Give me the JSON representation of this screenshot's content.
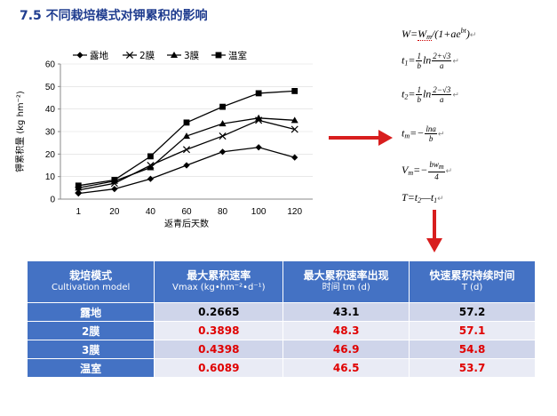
{
  "slide": {
    "title": "7.5  不同栽培模式对钾累积的影响"
  },
  "chart_data": {
    "type": "line",
    "x": [
      1,
      20,
      40,
      60,
      80,
      100,
      120
    ],
    "series": [
      {
        "name": "露地",
        "marker": "diamond",
        "values": [
          2.5,
          4.5,
          9,
          15,
          21,
          23,
          18.5
        ]
      },
      {
        "name": "2膜",
        "marker": "x",
        "values": [
          4,
          7,
          15,
          22,
          28,
          35,
          31
        ]
      },
      {
        "name": "3膜",
        "marker": "triangle",
        "values": [
          5,
          8,
          14,
          28,
          33.5,
          36,
          35
        ]
      },
      {
        "name": "温室",
        "marker": "square",
        "values": [
          6,
          8.5,
          19,
          34,
          41,
          47,
          48
        ]
      }
    ],
    "xlabel": "返青后天数",
    "ylabel": "钾累积量 (kg hm⁻²)",
    "ylim": [
      0,
      60
    ],
    "yticks": [
      0,
      10,
      20,
      30,
      40,
      50,
      60
    ],
    "legend": "top",
    "color": "#000000"
  },
  "formulas": {
    "w": {
      "lhs": "W",
      "eq": "=",
      "m": "W",
      "m_sub": "m",
      "rest": "/(1+",
      "a": "ae",
      "sup": "bt",
      "close": ")"
    },
    "t1": {
      "lhs": "t",
      "sub": "1",
      "eq": "=",
      "f1_num": "1",
      "f1_den": "b",
      "ln": "ln",
      "f2_num": "2+√3",
      "f2_den": "a"
    },
    "t2": {
      "lhs": "t",
      "sub": "2",
      "eq": "=",
      "f1_num": "1",
      "f1_den": "b",
      "ln": "ln",
      "f2_num": "2−√3",
      "f2_den": "a"
    },
    "tm": {
      "lhs": "t",
      "sub": "m",
      "eq": "=−",
      "f_num": "lna",
      "f_den": "b"
    },
    "vm": {
      "lhs": "V",
      "sub": "m",
      "eq": "=−",
      "f_num": "bw",
      "f_num_sub": "m",
      "f_den": "4"
    },
    "T": {
      "lhs": "T",
      "eq": "=",
      "a": "t",
      "a_sub": "2",
      "minus": "—",
      "b": "t",
      "b_sub": "1"
    },
    "mark": "↵"
  },
  "table": {
    "headers": [
      {
        "cn": "栽培模式",
        "en": "Cultivation model"
      },
      {
        "cn": "最大累积速率",
        "en": "Vmax (kg•hm⁻²•d⁻¹)"
      },
      {
        "cn": "最大累积速率出现",
        "en": "时间 tm (d)"
      },
      {
        "cn": "快速累积持续时间",
        "en": "T (d)"
      }
    ],
    "rows": [
      {
        "mode": "露地",
        "vmax": "0.2665",
        "tm": "43.1",
        "T": "57.2"
      },
      {
        "mode": "2膜",
        "vmax": "0.3898",
        "tm": "48.3",
        "T": "57.1"
      },
      {
        "mode": "3膜",
        "vmax": "0.4398",
        "tm": "46.9",
        "T": "54.8"
      },
      {
        "mode": "温室",
        "vmax": "0.6089",
        "tm": "46.5",
        "T": "53.7"
      }
    ]
  },
  "colors": {
    "title": "#1f3c8f",
    "arrow": "#d81e1e",
    "table_header": "#4472c4",
    "red_value": "#e00000"
  }
}
